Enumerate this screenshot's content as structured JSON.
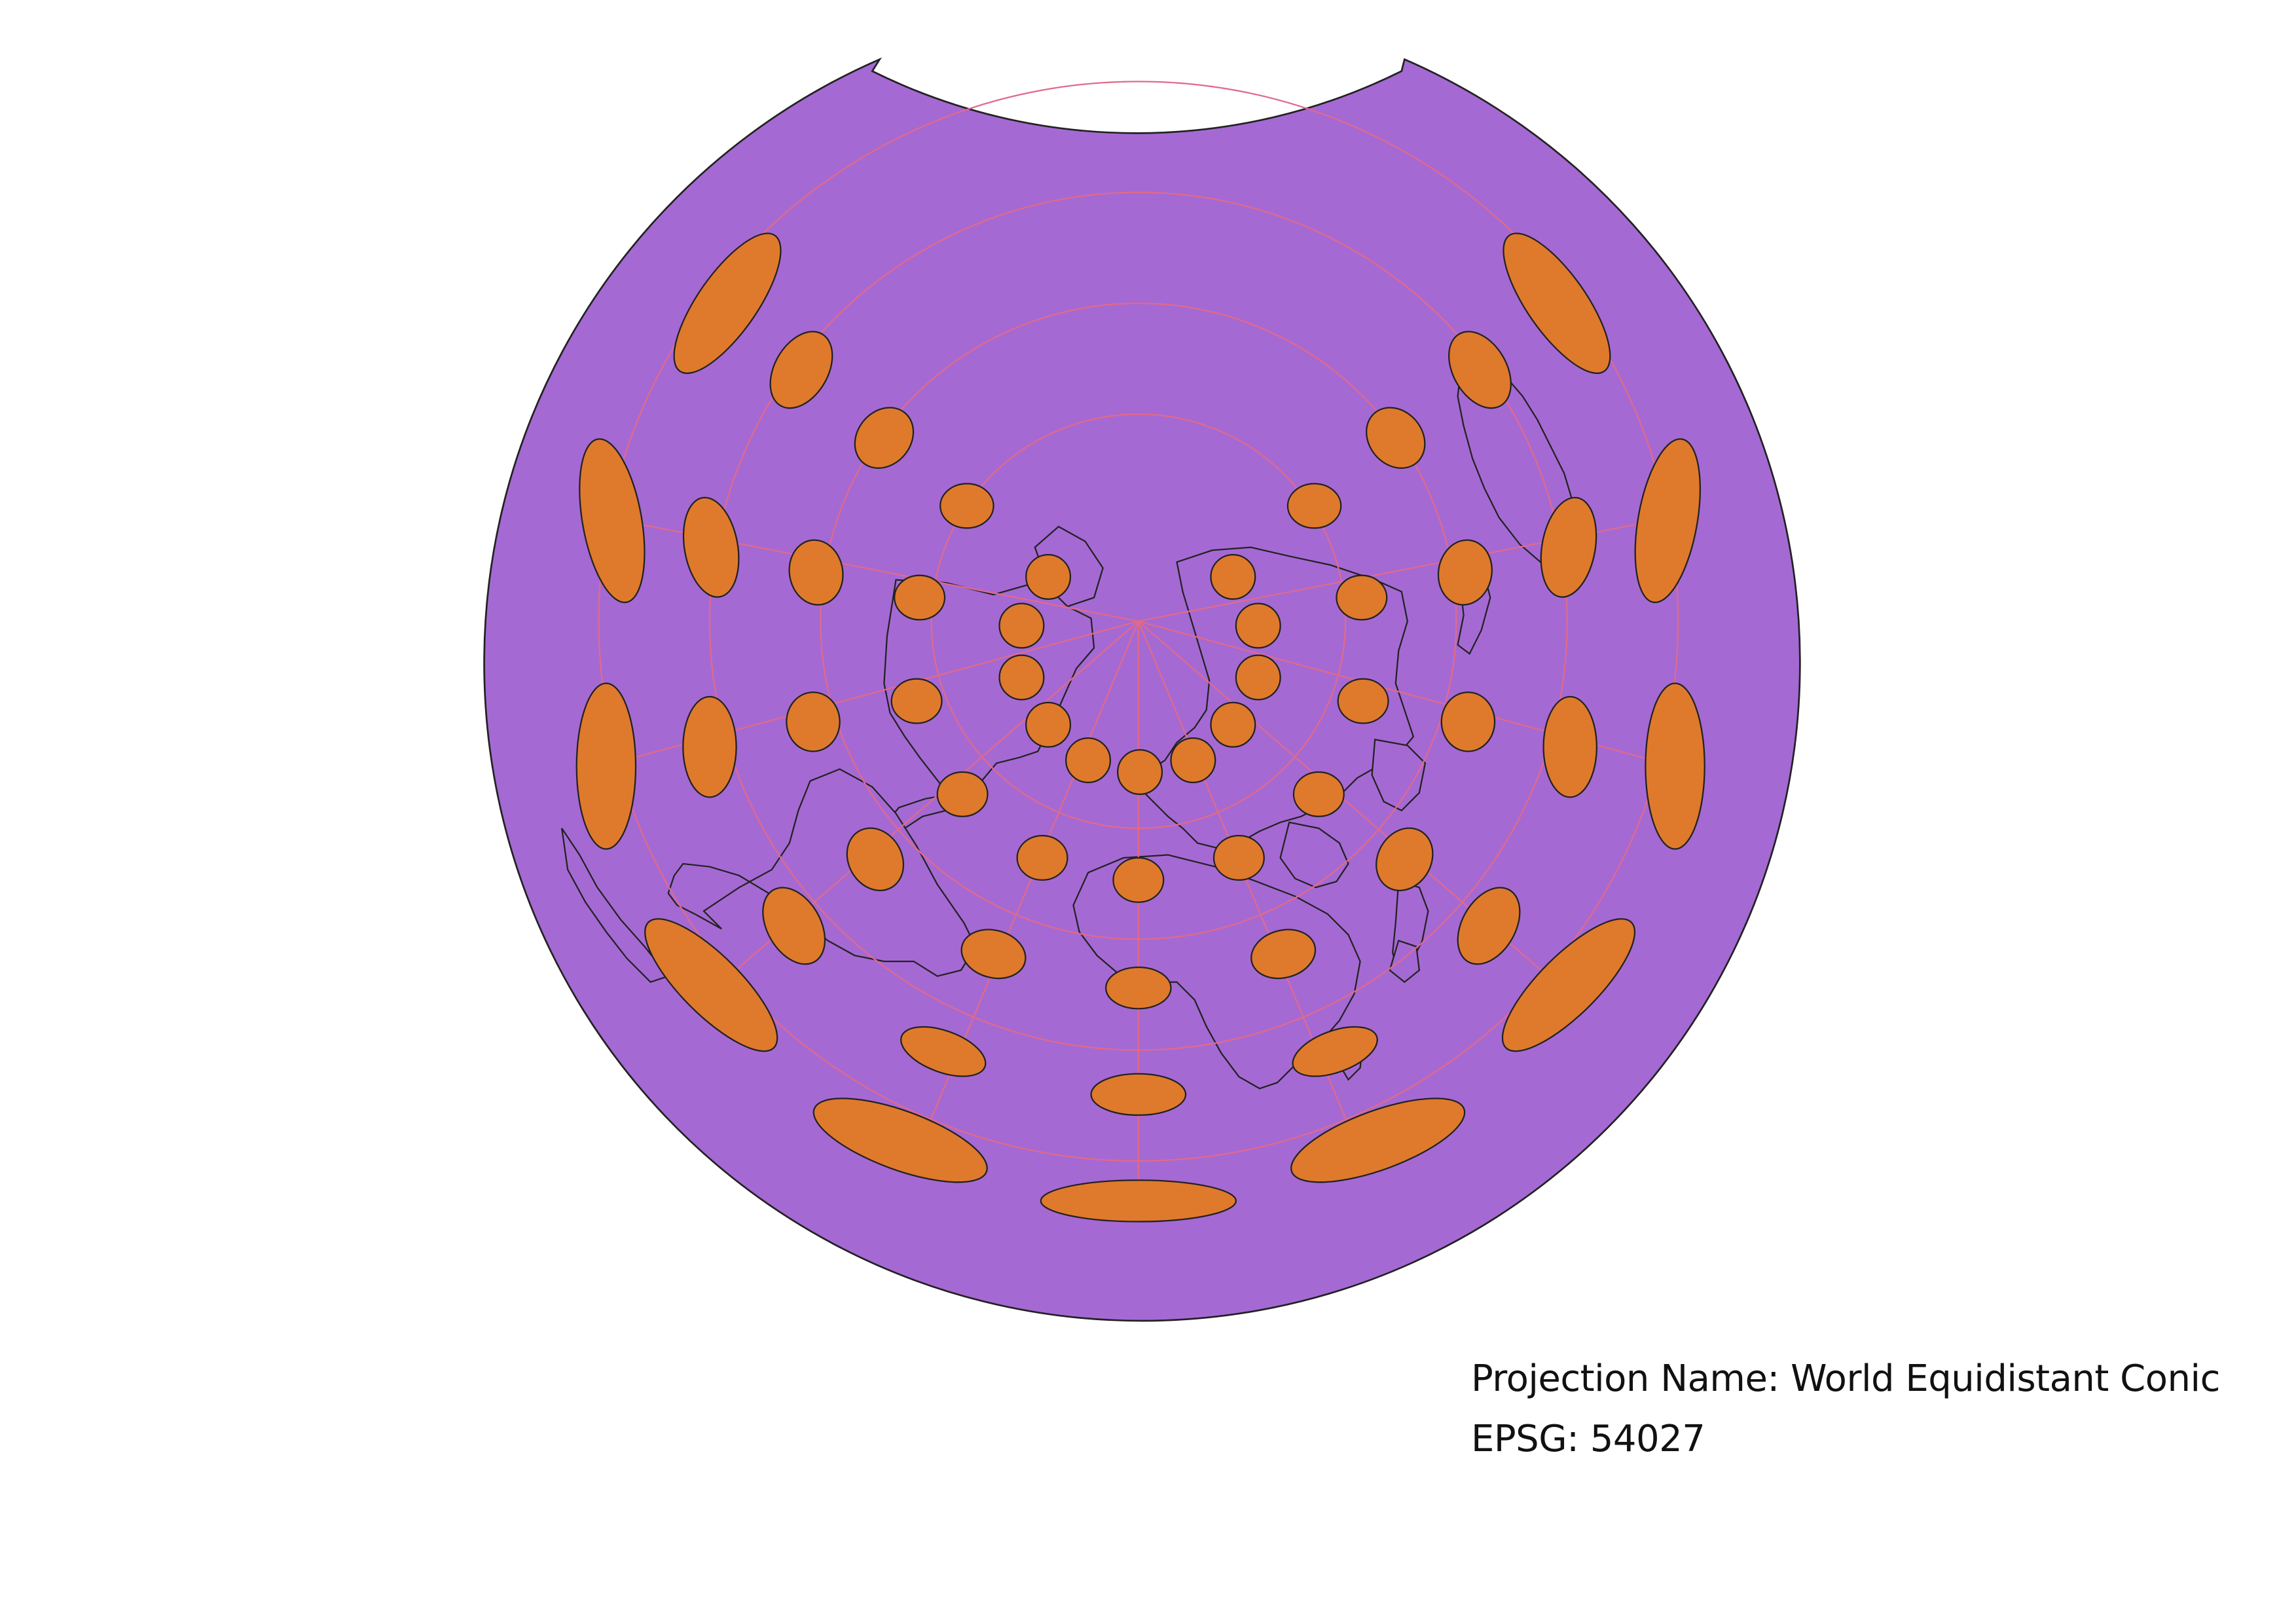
{
  "projection": {
    "name_line": "Projection Name: World Equidistant Conic",
    "epsg_line": "EPSG: 54027"
  },
  "colors": {
    "land": "#a569d4",
    "outline": "#222222",
    "ellipse": "#df7a2c",
    "graticule": "#e06a8a",
    "background": "#ffffff"
  },
  "map": {
    "layers": [
      "land-fill",
      "country-borders",
      "graticule",
      "tissot-indicatrices"
    ]
  }
}
